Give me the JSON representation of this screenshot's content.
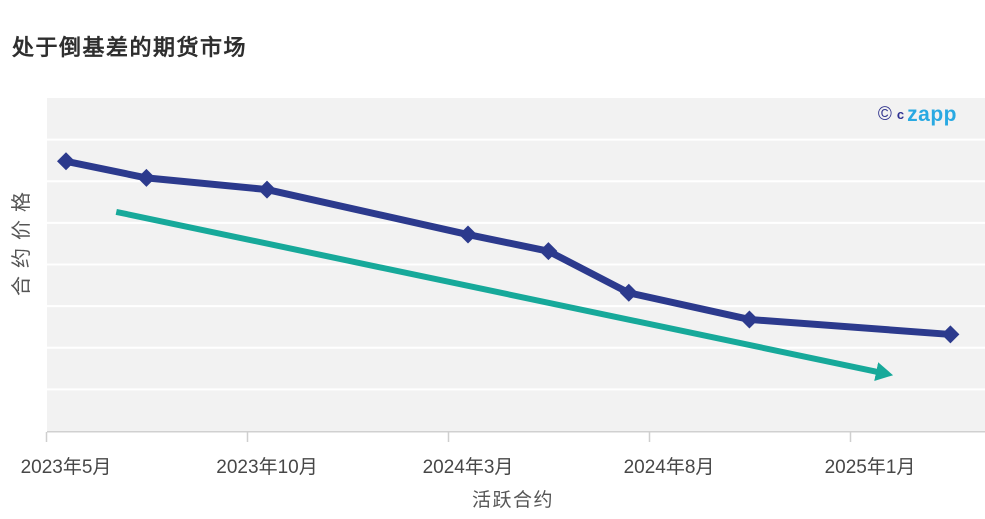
{
  "page": {
    "title": "处于倒基差的期货市场"
  },
  "logo": {
    "copyright_symbol": "©",
    "prefix": "c",
    "name": "zapp"
  },
  "colors": {
    "series_navy": "#2c3a8d",
    "trend_teal": "#17a99a",
    "plot_background": "#f2f2f2",
    "gridline": "#ffffff",
    "axis_line": "#d0d0d0",
    "tick_mark": "#cfcfcf",
    "tick_text": "#474747",
    "logo_blue": "#29a9e2",
    "logo_navy": "#2e3192",
    "title_text": "#2e2e2e"
  },
  "chart_data": {
    "type": "line",
    "title": "处于倒基差的期货市场",
    "xlabel": "活跃合约",
    "ylabel": "合约价格",
    "x_tick_labels": [
      "2023年5月",
      "2023年10月",
      "2024年3月",
      "2024年8月",
      "2025年1月"
    ],
    "x_tick_months": [
      0,
      5,
      10,
      15,
      20
    ],
    "y_tick_labels": [],
    "y_axis": {
      "min": 0,
      "max": 100,
      "numeric_labels_shown": false
    },
    "grid": {
      "horizontal_gridlines": 7,
      "vertical_gridlines": 0
    },
    "legend": "none",
    "series": [
      {
        "name": "合约价格",
        "color": "#2c3a8d",
        "marker": "diamond",
        "line_width": 7,
        "points": [
          {
            "x": 0,
            "y": 81
          },
          {
            "x": 2,
            "y": 76
          },
          {
            "x": 5,
            "y": 72.5
          },
          {
            "x": 10,
            "y": 59
          },
          {
            "x": 12,
            "y": 54
          },
          {
            "x": 14,
            "y": 41.5
          },
          {
            "x": 17,
            "y": 33.5
          },
          {
            "x": 22,
            "y": 29
          }
        ]
      },
      {
        "name": "下行趋势",
        "color": "#17a99a",
        "marker": "arrow-end",
        "line_width": 6,
        "points": [
          {
            "x": 1.25,
            "y": 65.8
          },
          {
            "x": 20.2,
            "y": 17.7
          }
        ]
      }
    ]
  }
}
